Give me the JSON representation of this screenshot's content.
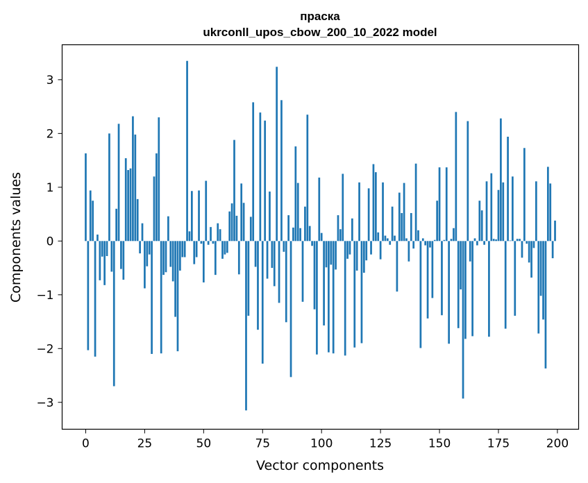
{
  "chart_data": {
    "type": "bar",
    "title_line1": "праска",
    "title_line2": "ukrconll_upos_cbow_200_10_2022 model",
    "xlabel": "Vector components",
    "ylabel": "Components values",
    "xlim": [
      -10,
      209
    ],
    "ylim": [
      -3.5,
      3.65
    ],
    "xticks": [
      0,
      25,
      50,
      75,
      100,
      125,
      150,
      175,
      200
    ],
    "yticks": [
      -3,
      -2,
      -1,
      0,
      1,
      2,
      3
    ],
    "bar_color": "#1f77b4",
    "grid": false,
    "legend": "none",
    "values": [
      1.63,
      -2.03,
      0.94,
      0.75,
      -2.15,
      0.12,
      -0.73,
      -0.29,
      -0.82,
      -0.28,
      2.0,
      -0.57,
      -2.7,
      0.6,
      2.18,
      -0.52,
      -0.72,
      1.54,
      1.32,
      1.35,
      2.32,
      1.98,
      0.78,
      -0.23,
      0.33,
      -0.88,
      -0.47,
      -0.25,
      -2.1,
      1.2,
      1.63,
      2.3,
      -2.09,
      -0.63,
      -0.58,
      0.46,
      -0.48,
      -0.75,
      -1.41,
      -2.05,
      -0.55,
      -0.3,
      -0.3,
      3.35,
      0.18,
      0.93,
      -0.43,
      -0.3,
      0.94,
      -0.05,
      -0.77,
      1.12,
      -0.07,
      0.26,
      -0.05,
      -0.63,
      0.33,
      0.22,
      -0.33,
      -0.25,
      -0.22,
      0.55,
      0.7,
      1.88,
      0.47,
      -0.62,
      1.07,
      0.71,
      -3.15,
      -1.39,
      0.45,
      2.58,
      -0.48,
      -1.65,
      2.39,
      -2.28,
      2.24,
      -0.7,
      0.92,
      -0.5,
      -0.84,
      3.24,
      -1.15,
      2.62,
      -0.2,
      -1.51,
      0.48,
      -2.53,
      0.25,
      1.76,
      1.08,
      0.24,
      -1.13,
      0.64,
      2.35,
      0.28,
      -0.09,
      -1.27,
      -2.11,
      1.18,
      0.15,
      -1.57,
      -0.49,
      -2.07,
      -0.44,
      -2.09,
      -0.53,
      0.48,
      0.22,
      1.25,
      -2.13,
      -0.33,
      -0.25,
      0.42,
      -1.98,
      -0.55,
      1.09,
      -1.9,
      -0.59,
      -0.36,
      0.98,
      -0.25,
      1.43,
      1.28,
      0.16,
      -0.34,
      1.09,
      0.1,
      0.05,
      -0.07,
      0.64,
      0.1,
      -0.94,
      0.9,
      0.52,
      1.08,
      0.05,
      -0.38,
      0.52,
      -0.14,
      1.44,
      0.2,
      -1.99,
      0.05,
      -0.08,
      -1.44,
      -0.12,
      -1.06,
      0.02,
      0.75,
      1.37,
      -1.38,
      0.02,
      1.37,
      -1.91,
      0.04,
      0.24,
      2.4,
      -1.62,
      -0.9,
      -2.93,
      -1.82,
      2.23,
      -0.38,
      -1.77,
      0.05,
      -0.08,
      0.75,
      0.57,
      -0.07,
      1.11,
      -1.78,
      1.26,
      0.04,
      0.03,
      0.95,
      2.28,
      1.09,
      -1.63,
      1.94,
      0.01,
      1.2,
      -1.39,
      0.04,
      0.04,
      -0.31,
      1.73,
      -0.05,
      -0.4,
      -0.68,
      -0.13,
      1.11,
      -1.72,
      -1.02,
      -1.46,
      -2.37,
      1.38,
      1.07,
      -0.32,
      0.38
    ]
  }
}
